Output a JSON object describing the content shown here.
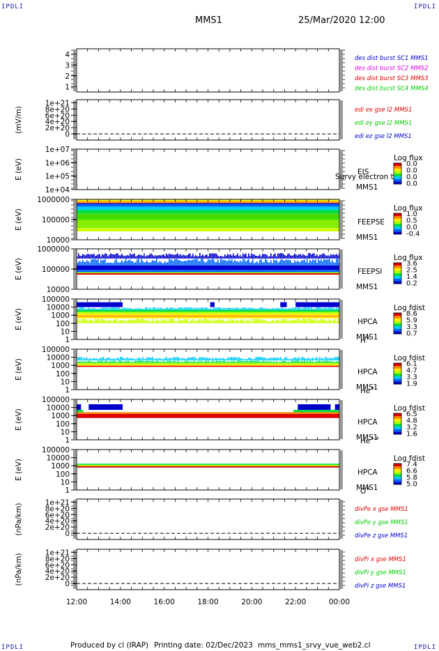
{
  "corner_labels": {
    "top_left": "IPDLI",
    "top_right": "IPDLI",
    "bottom_left": "IPDLI",
    "bottom_right": "IPDLI"
  },
  "header": {
    "spacecraft": "MMS1",
    "datetime": "25/Mar/2020 12:00"
  },
  "footer": {
    "produced_by": "Produced by cl (IRAP)",
    "printing_date": "Printing date: 02/Dec/2023",
    "script_name": "mms_mms1_srvy_vue_web2.cl"
  },
  "colors": {
    "red": "#dd0000",
    "green": "#00cc00",
    "blue": "#0000cc",
    "magenta": "#dd00dd",
    "colorbar": [
      "#0000cc",
      "#0066ff",
      "#00ccff",
      "#00dd44",
      "#aaff00",
      "#ffee00",
      "#ff8800",
      "#dd0000"
    ]
  },
  "chart_data": [
    {
      "id": "p1",
      "type": "line",
      "ylabel": "",
      "ylim": [
        0.5,
        4.5
      ],
      "yticks": [
        "4",
        "3",
        "2",
        "1"
      ],
      "yvals": [
        4,
        3,
        2,
        1
      ],
      "legend": [
        {
          "name": "des dist burst SC1 MMS1",
          "color": "#0000cc"
        },
        {
          "name": "des dist burst SC2 MMS2",
          "color": "#dd00dd"
        },
        {
          "name": "des dist burst SC3 MMS3",
          "color": "#dd0000"
        },
        {
          "name": "des dist burst SC4 MMS4",
          "color": "#00cc00"
        }
      ],
      "series": []
    },
    {
      "id": "p2",
      "type": "line",
      "ylabel": "(mV/m)",
      "ylim": [
        -0.2,
        1.1
      ],
      "yticks": [
        "1e+21",
        "8e+20",
        "6e+20",
        "4e+20",
        "2e+20",
        "0"
      ],
      "yvals": [
        1,
        0.8,
        0.6,
        0.4,
        0.2,
        0
      ],
      "zero_line": true,
      "legend": [
        {
          "name": "edi ex gse l2 MMS1",
          "color": "#dd0000"
        },
        {
          "name": "edi ey gse l2 MMS1",
          "color": "#00cc00"
        },
        {
          "name": "edi ez gse l2 MMS1",
          "color": "#0000cc"
        }
      ],
      "series": []
    },
    {
      "id": "p3",
      "type": "heatmap",
      "ylabel": "E (eV)",
      "scale": "log",
      "ylim": [
        10000,
        10000000
      ],
      "yticks": [
        "1e+07",
        "1e+06",
        "1e+05",
        "1e+04"
      ],
      "yvals": [
        10000000,
        1000000,
        100000,
        10000
      ],
      "instrument": "EIS",
      "sc_label": "MMS1",
      "species": "",
      "species_sup": "",
      "overlay_text": "Survy electron to",
      "colorbar": {
        "title": "Log flux",
        "ticks": [
          "0.0",
          "0.0",
          "0.0",
          "0.0"
        ]
      },
      "bands": []
    },
    {
      "id": "p4",
      "type": "heatmap",
      "ylabel": "E (eV)",
      "scale": "log",
      "ylim": [
        10000,
        1000000
      ],
      "yticks": [
        "1000000",
        "100000",
        "10000"
      ],
      "yvals": [
        1000000,
        100000,
        10000
      ],
      "instrument": "FEEPSE",
      "sc_label": "MMS1",
      "species": "",
      "species_sup": "",
      "colorbar": {
        "title": "Log flux",
        "ticks": [
          "1.0",
          "0.5",
          "0.0",
          "-0.4"
        ]
      },
      "bands": [
        {
          "from": 780000,
          "to": 950000,
          "color": "#ffee00"
        },
        {
          "from": 640000,
          "to": 780000,
          "color": "#ff8800"
        },
        {
          "from": 560000,
          "to": 640000,
          "color": "#0000cc"
        },
        {
          "from": 430000,
          "to": 560000,
          "color": "#0066ff"
        },
        {
          "from": 300000,
          "to": 430000,
          "color": "#00ccff"
        },
        {
          "from": 200000,
          "to": 300000,
          "color": "#00dd44"
        },
        {
          "from": 95000,
          "to": 200000,
          "color": "#44dd00"
        },
        {
          "from": 38000,
          "to": 95000,
          "color": "#88ee00"
        },
        {
          "from": 26000,
          "to": 38000,
          "color": "#ccff00"
        }
      ]
    },
    {
      "id": "p5",
      "type": "heatmap",
      "ylabel": "E (eV)",
      "scale": "log",
      "ylim": [
        10000,
        1000000
      ],
      "yticks": [
        "1000000",
        "100000",
        "10000"
      ],
      "yvals": [
        1000000,
        100000,
        10000
      ],
      "instrument": "FEEPSI",
      "sc_label": "MMS1",
      "species": "",
      "species_sup": "",
      "colorbar": {
        "title": "Log flux",
        "ticks": [
          "3.6",
          "2.5",
          "1.4",
          "0.2"
        ]
      },
      "bands": [
        {
          "from": 330000,
          "to": 620000,
          "color": "#0000cc",
          "sparse": true
        },
        {
          "from": 150000,
          "to": 330000,
          "color": "#0066ff",
          "sparse": true
        },
        {
          "from": 90000,
          "to": 150000,
          "color": "#0000cc"
        },
        {
          "from": 70000,
          "to": 90000,
          "color": "#0066ff"
        },
        {
          "from": 62000,
          "to": 70000,
          "color": "#aaff00"
        },
        {
          "from": 53000,
          "to": 62000,
          "color": "#dd0000"
        }
      ]
    },
    {
      "id": "p6",
      "type": "heatmap",
      "ylabel": "E (eV)",
      "scale": "log",
      "ylim": [
        1,
        100000
      ],
      "yticks": [
        "100000",
        "10000",
        "1000",
        "100",
        "10",
        "1"
      ],
      "yvals": [
        100000,
        10000,
        1000,
        100,
        10,
        1
      ],
      "instrument": "HPCA",
      "sc_label": "MMS1",
      "species": "H",
      "species_sup": "+",
      "colorbar": {
        "title": "Log fdist",
        "ticks": [
          "8.6",
          "5.9",
          "3.3",
          "0.7"
        ]
      },
      "bands": [
        {
          "from": 10000,
          "to": 40000,
          "color": "#0000cc",
          "patches": [
            [
              12.0,
              14.1
            ],
            [
              18.1,
              18.3
            ],
            [
              21.3,
              21.6
            ],
            [
              22.0,
              22.3
            ],
            [
              22.3,
              24.0
            ]
          ]
        },
        {
          "from": 4500,
          "to": 10000,
          "color": "#00ccff",
          "sparse": true
        },
        {
          "from": 2600,
          "to": 4500,
          "color": "#00dd44"
        },
        {
          "from": 1600,
          "to": 2600,
          "color": "#aaff00"
        },
        {
          "from": 900,
          "to": 1600,
          "color": "#ffee00"
        },
        {
          "from": 650,
          "to": 900,
          "color": "#ff8800"
        },
        {
          "from": 400,
          "to": 650,
          "color": "#ffee00"
        },
        {
          "from": 100,
          "to": 400,
          "color": "#ccff00",
          "sparse": true
        }
      ]
    },
    {
      "id": "p7",
      "type": "heatmap",
      "ylabel": "E (eV)",
      "scale": "log",
      "ylim": [
        1,
        100000
      ],
      "yticks": [
        "100000",
        "10000",
        "1000",
        "100",
        "10",
        "1"
      ],
      "yvals": [
        100000,
        10000,
        1000,
        100,
        10,
        1
      ],
      "instrument": "HPCA",
      "sc_label": "MMS1",
      "species": "He",
      "species_sup": "+",
      "colorbar": {
        "title": "Log fdist",
        "ticks": [
          "6.1",
          "4.7",
          "3.3",
          "1.9"
        ]
      },
      "bands": [
        {
          "from": 4000,
          "to": 12000,
          "color": "#00ccff",
          "sparse": true
        },
        {
          "from": 2000,
          "to": 4000,
          "color": "#00dd44",
          "sparse": true
        },
        {
          "from": 1300,
          "to": 2000,
          "color": "#aaff00"
        },
        {
          "from": 900,
          "to": 1300,
          "color": "#ffee00"
        },
        {
          "from": 650,
          "to": 900,
          "color": "#dd0000"
        }
      ]
    },
    {
      "id": "p8",
      "type": "heatmap",
      "ylabel": "E (eV)",
      "scale": "log",
      "ylim": [
        1,
        100000
      ],
      "yticks": [
        "100000",
        "10000",
        "1000",
        "100",
        "10",
        "1"
      ],
      "yvals": [
        100000,
        10000,
        1000,
        100,
        10,
        1
      ],
      "instrument": "HPCA",
      "sc_label": "MMS1",
      "species": "He",
      "species_sup": "++",
      "colorbar": {
        "title": "Log fdist",
        "ticks": [
          "6.5",
          "4.8",
          "3.2",
          "1.6"
        ]
      },
      "bands": [
        {
          "from": 5000,
          "to": 25000,
          "color": "#0000cc",
          "patches": [
            [
              12.0,
              12.2
            ],
            [
              12.55,
              14.1
            ],
            [
              22.1,
              23.6
            ],
            [
              23.8,
              24.0
            ]
          ]
        },
        {
          "from": 2600,
          "to": 5000,
          "color": "#00dd44",
          "patches": [
            [
              12.0,
              12.3
            ],
            [
              21.9,
              24.0
            ]
          ]
        },
        {
          "from": 1600,
          "to": 2600,
          "color": "#ff8800"
        },
        {
          "from": 500,
          "to": 1600,
          "color": "#dd0000"
        }
      ]
    },
    {
      "id": "p9",
      "type": "heatmap",
      "ylabel": "E (eV)",
      "scale": "log",
      "ylim": [
        1,
        100000
      ],
      "yticks": [
        "100000",
        "10000",
        "1000",
        "100",
        "10",
        "1"
      ],
      "yvals": [
        100000,
        10000,
        1000,
        100,
        10,
        1
      ],
      "instrument": "HPCA",
      "sc_label": "MMS1",
      "species": "O",
      "species_sup": "+",
      "colorbar": {
        "title": "Log fdist",
        "ticks": [
          "7.4",
          "6.6",
          "5.8",
          "5.0"
        ]
      },
      "bands": [
        {
          "from": 1300,
          "to": 1800,
          "color": "#00dd44"
        },
        {
          "from": 900,
          "to": 1300,
          "color": "#aaff00"
        },
        {
          "from": 600,
          "to": 900,
          "color": "#dd0000"
        }
      ]
    },
    {
      "id": "p10",
      "type": "line",
      "ylabel": "(nPa/km)",
      "ylim": [
        -0.2,
        1.1
      ],
      "yticks": [
        "1e+21",
        "8e+20",
        "6e+20",
        "4e+20",
        "2e+20",
        "0"
      ],
      "yvals": [
        1,
        0.8,
        0.6,
        0.4,
        0.2,
        0
      ],
      "zero_line": true,
      "legend": [
        {
          "name": "divPe x gse MMS1",
          "color": "#dd0000"
        },
        {
          "name": "divPe y gse MMS1",
          "color": "#00cc00"
        },
        {
          "name": "divPe z gse MMS1",
          "color": "#0000cc"
        }
      ],
      "series": []
    },
    {
      "id": "p11",
      "type": "line",
      "ylabel": "(nPa/km)",
      "ylim": [
        -0.2,
        1.1
      ],
      "yticks": [
        "1e+21",
        "8e+20",
        "6e+20",
        "4e+20",
        "2e+20",
        "0"
      ],
      "yvals": [
        1,
        0.8,
        0.6,
        0.4,
        0.2,
        0
      ],
      "zero_line": true,
      "legend": [
        {
          "name": "divPi x gse MMS1",
          "color": "#dd0000"
        },
        {
          "name": "divPi y gse MMS1",
          "color": "#00cc00"
        },
        {
          "name": "divPi z gse MMS1",
          "color": "#0000cc"
        }
      ],
      "series": []
    }
  ],
  "xaxis": {
    "range_hours": [
      12,
      24
    ],
    "ticks": [
      "12:00",
      "14:00",
      "16:00",
      "18:00",
      "20:00",
      "22:00",
      "00:00"
    ],
    "tick_hours": [
      12,
      14,
      16,
      18,
      20,
      22,
      24
    ]
  }
}
